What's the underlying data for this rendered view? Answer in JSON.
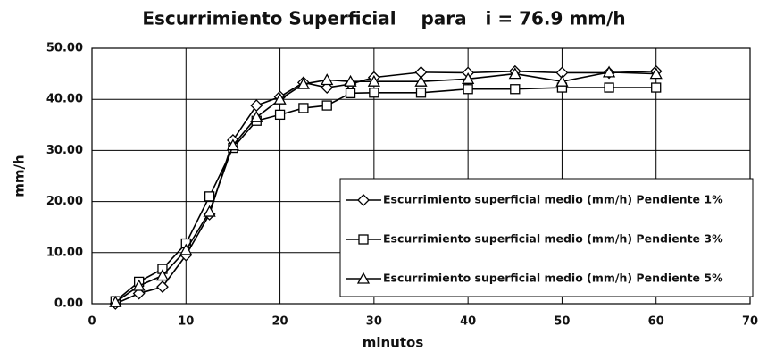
{
  "chart_data": {
    "type": "line",
    "title": "Escurrimiento Superficial    para   i = 76.9 mm/h",
    "x_label": "minutos",
    "y_label": "mm/h",
    "x": [
      2.5,
      5,
      7.5,
      10,
      12.5,
      15,
      17.5,
      20,
      22.5,
      25,
      27.5,
      30,
      35,
      40,
      45,
      50,
      55,
      60
    ],
    "series": [
      {
        "name": "Escurrimiento superficial medio (mm/h) Pendiente 1%",
        "color": "#000000",
        "marker": "diamond",
        "values": [
          0,
          2,
          3.3,
          9.5,
          17.5,
          32,
          38.8,
          40.5,
          43.3,
          42.3,
          43,
          44.3,
          45.3,
          45.2,
          45.5,
          45.2,
          45.2,
          45.5
        ]
      },
      {
        "name": "Escurrimiento superficial medio (mm/h) Pendiente 3%",
        "color": "#000000",
        "marker": "square",
        "values": [
          0.5,
          4.3,
          6.8,
          11.8,
          21,
          30.5,
          35.8,
          37,
          38.3,
          38.8,
          41.2,
          41.3,
          41.3,
          42,
          42,
          42.3,
          42.3,
          42.3
        ]
      },
      {
        "name": "Escurrimiento superficial medio (mm/h) Pendiente 5%",
        "color": "#000000",
        "marker": "triangle",
        "values": [
          0.3,
          3.5,
          5.5,
          10.5,
          18,
          31,
          36.5,
          40,
          43,
          43.8,
          43.5,
          43.5,
          43.5,
          44,
          45,
          43.5,
          45.3,
          45
        ]
      }
    ],
    "xlim": [
      0,
      70
    ],
    "xticks": [
      0,
      10,
      20,
      30,
      40,
      50,
      60,
      70
    ],
    "ylim": [
      0,
      50
    ],
    "yticks": [
      {
        "value": 0,
        "label": "0.00"
      },
      {
        "value": 10,
        "label": "10.00"
      },
      {
        "value": 20,
        "label": "20.00"
      },
      {
        "value": 30,
        "label": "30.00"
      },
      {
        "value": 40,
        "label": "40.00"
      },
      {
        "value": 50,
        "label": "50.00"
      }
    ],
    "grid": true,
    "legend": "lower right"
  }
}
